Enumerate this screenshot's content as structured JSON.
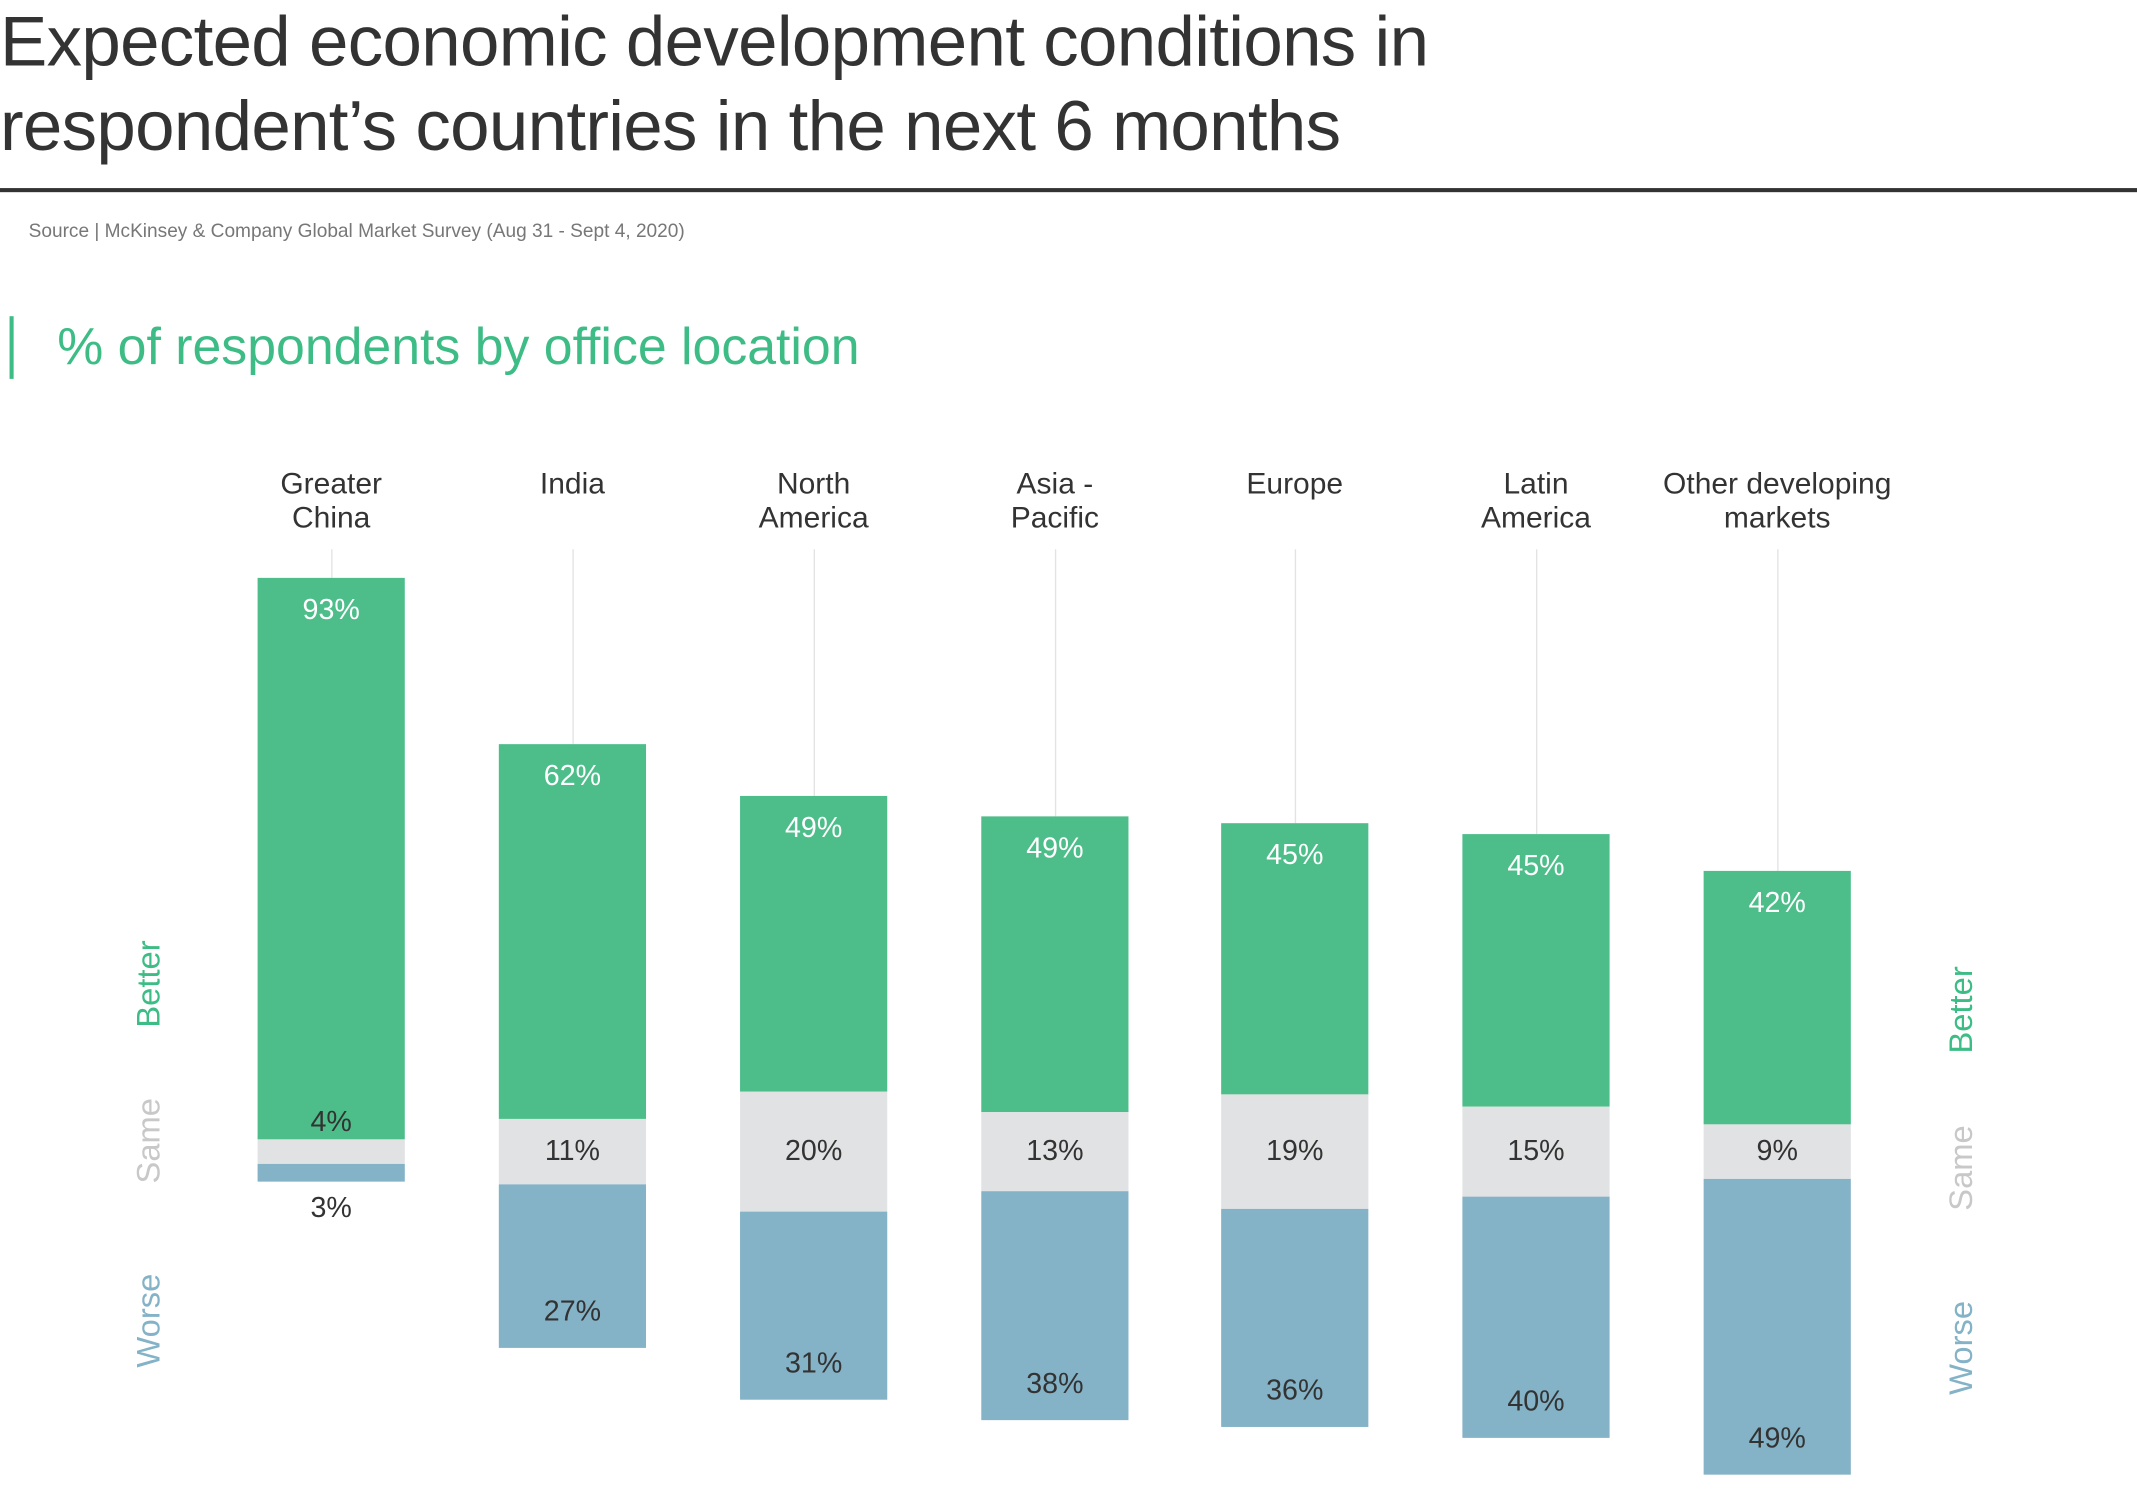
{
  "title_lines": [
    "Expected economic development conditions in",
    "respondent’s countries in the next 6 months"
  ],
  "source": "Source | McKinsey & Company Global Market Survey (Aug 31 - Sept 4, 2020)",
  "colors": {
    "better": "#4dbe8a",
    "same": "#e1e2e4",
    "worse": "#84b2c7",
    "accent": "#3dbd85"
  },
  "chart_data": {
    "type": "bar",
    "stacked": true,
    "title": "% of respondents by office location",
    "categories": [
      "Greater China",
      "India",
      "North America",
      "Asia - Pacific",
      "Europe",
      "Latin America",
      "Other developing markets"
    ],
    "category_lines": [
      [
        "Greater",
        "China"
      ],
      [
        "India"
      ],
      [
        "North",
        "America"
      ],
      [
        "Asia -",
        "Pacific"
      ],
      [
        "Europe"
      ],
      [
        "Latin",
        "America"
      ],
      [
        "Other developing",
        "markets"
      ]
    ],
    "series": [
      {
        "name": "Better",
        "values": [
          93,
          62,
          49,
          49,
          45,
          45,
          42
        ]
      },
      {
        "name": "Same",
        "values": [
          4,
          11,
          20,
          13,
          19,
          15,
          9
        ]
      },
      {
        "name": "Worse",
        "values": [
          3,
          27,
          31,
          38,
          36,
          40,
          49
        ]
      }
    ],
    "value_labels": {
      "Better": [
        "93%",
        "62%",
        "49%",
        "49%",
        "45%",
        "45%",
        "42%"
      ],
      "Same": [
        "4%",
        "11%",
        "20%",
        "13%",
        "19%",
        "15%",
        "9%"
      ],
      "Worse": [
        "3%",
        "27%",
        "31%",
        "38%",
        "36%",
        "40%",
        "49%"
      ]
    },
    "legend": [
      "Better",
      "Same",
      "Worse"
    ],
    "legend_placement": "left and right, vertical"
  }
}
